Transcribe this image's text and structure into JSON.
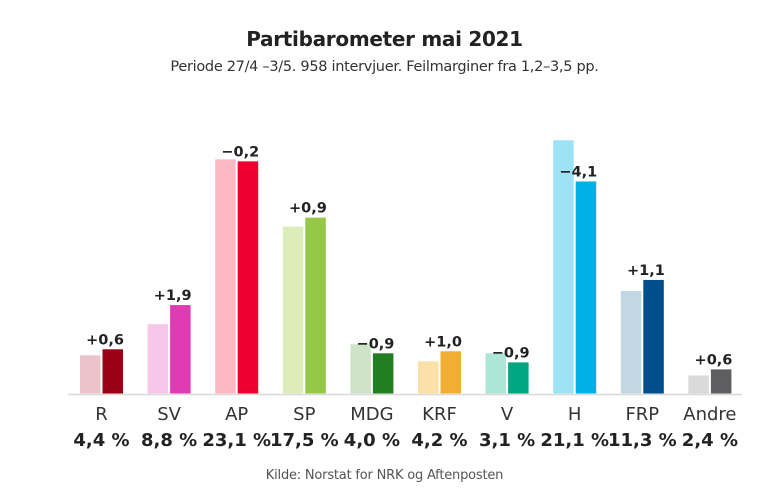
{
  "chart_data": {
    "type": "bar",
    "title": "Partibarometer mai 2021",
    "subtitle": "Periode 27/4 –3/5. 958 intervjuer. Feilmarginer fra 1,2–3,5 pp.",
    "source": "Kilde: Norstat for NRK og Aftenposten",
    "xlabel": "",
    "ylabel": "",
    "ylim": [
      0,
      26
    ],
    "grid": false,
    "legend": "none",
    "categories": [
      "R",
      "SV",
      "AP",
      "SP",
      "MDG",
      "KRF",
      "V",
      "H",
      "FRP",
      "Andre"
    ],
    "series": [
      {
        "name": "previous",
        "values": [
          3.8,
          6.9,
          23.3,
          16.6,
          4.9,
          3.2,
          4.0,
          25.2,
          10.2,
          1.8
        ],
        "colors": [
          "#ebc4c9",
          "#f6c7e8",
          "#fbbac3",
          "#dcedb9",
          "#cfe3c9",
          "#fbe0a8",
          "#ade5d6",
          "#9ee3f5",
          "#c2d7e4",
          "#dadada"
        ]
      },
      {
        "name": "current",
        "values": [
          4.4,
          8.8,
          23.1,
          17.5,
          4.0,
          4.2,
          3.1,
          21.1,
          11.3,
          2.4
        ],
        "colors": [
          "#9b0019",
          "#e03bb3",
          "#ef002e",
          "#94c846",
          "#217f22",
          "#f2ad33",
          "#00a882",
          "#00b1e7",
          "#004f8c",
          "#5f5f62"
        ]
      }
    ],
    "value_labels": [
      "4,4 %",
      "8,8 %",
      "23,1 %",
      "17,5 %",
      "4,0 %",
      "4,2 %",
      "3,1 %",
      "21,1 %",
      "11,3 %",
      "2,4 %"
    ],
    "change_labels": [
      "+0,6",
      "+1,9",
      "−0,2",
      "+0,9",
      "−0,9",
      "+1,0",
      "−0,9",
      "−4,1",
      "+1,1",
      "+0,6"
    ]
  },
  "colors": {
    "axis": "#d9d9d9",
    "text": "#222222"
  }
}
